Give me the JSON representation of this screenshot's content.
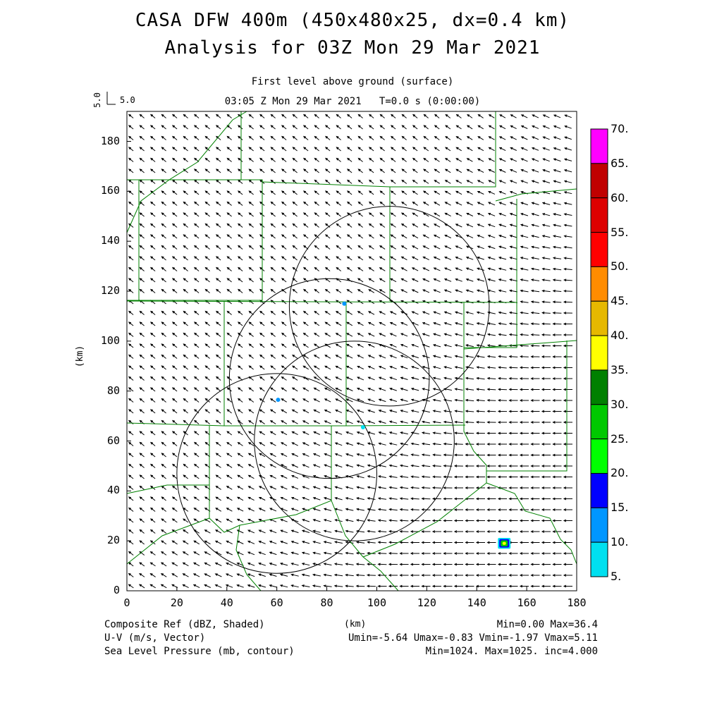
{
  "titles": {
    "line1": "CASA DFW 400m (450x480x25, dx=0.4 km)",
    "line2": "Analysis for 03Z Mon 29 Mar 2021",
    "level": "First level above ground (surface)",
    "time": "03:05 Z Mon 29 Mar 2021   T=0.0 s (0:00:00)"
  },
  "reference_vector": {
    "label": "5.0",
    "side_label": "5.0"
  },
  "axes": {
    "x_label": "(km)",
    "y_label": "(km)",
    "x_ticks": [
      "0",
      "20",
      "40",
      "60",
      "80",
      "100",
      "120",
      "140",
      "160",
      "180"
    ],
    "y_ticks": [
      "0",
      "20",
      "40",
      "60",
      "80",
      "100",
      "120",
      "140",
      "160",
      "180"
    ],
    "x_range_km": [
      0,
      180
    ],
    "y_range_km": [
      0,
      192
    ]
  },
  "colorbar": {
    "labels": [
      "70.",
      "65.",
      "60.",
      "55.",
      "50.",
      "45.",
      "40.",
      "35.",
      "30.",
      "25.",
      "20.",
      "15.",
      "10.",
      "5."
    ],
    "colors": [
      "#ff00ff",
      "#c00000",
      "#dd0000",
      "#ff0000",
      "#ff8c00",
      "#e6b800",
      "#ffff00",
      "#008000",
      "#00c800",
      "#00ff00",
      "#0000ff",
      "#0096ff",
      "#00e0f0"
    ]
  },
  "footer": {
    "field1": "Composite Ref (dBZ, Shaded)",
    "field1_stats": "Min=0.00 Max=36.4",
    "field2": "U-V (m/s, Vector)",
    "field2_stats": "Umin=-5.64 Umax=-0.83 Vmin=-1.97 Vmax=5.11",
    "field3": "Sea Level Pressure (mb, contour)",
    "field3_stats": "Min=1024. Max=1025. inc=4.000"
  },
  "radar_rings": [
    {
      "name": "ring-1",
      "center_km": [
        105,
        114
      ],
      "radius_km": 40
    },
    {
      "name": "ring-2",
      "center_km": [
        81,
        85
      ],
      "radius_km": 40
    },
    {
      "name": "ring-3",
      "center_km": [
        60,
        47
      ],
      "radius_km": 40
    },
    {
      "name": "ring-4",
      "center_km": [
        91,
        60
      ],
      "radius_km": 40
    }
  ],
  "echoes": [
    {
      "name": "echo-north",
      "center_km": [
        87,
        115
      ],
      "color": "#0096ff"
    },
    {
      "name": "echo-west",
      "center_km": [
        60.5,
        76.5
      ],
      "color": "#0096ff"
    },
    {
      "name": "echo-center",
      "center_km": [
        94.5,
        65.5
      ],
      "color": "#00e0f0"
    },
    {
      "name": "echo-storm",
      "center_km": [
        151,
        19
      ],
      "color": "#00c800"
    }
  ]
}
